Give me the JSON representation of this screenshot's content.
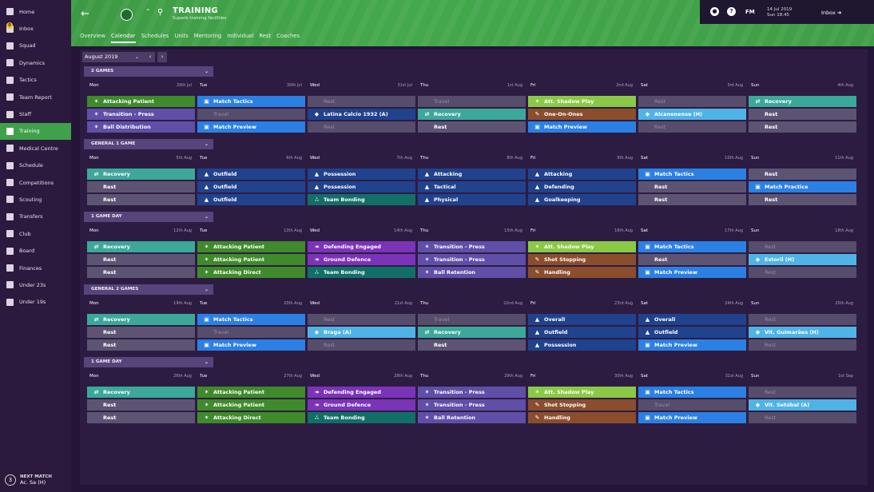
{
  "sidebar": {
    "items": [
      "Home",
      "Inbox",
      "Squad",
      "Dynamics",
      "Tactics",
      "Team Report",
      "Staff",
      "Training",
      "Medical Centre",
      "Schedule",
      "Competitions",
      "Scouting",
      "Transfers",
      "Club",
      "Board",
      "Finances",
      "Under 23s",
      "Under 19s"
    ],
    "inbox_badge": "0",
    "next_match": {
      "label": "NEXT MATCH",
      "count": "3",
      "opponent": "Ac. Sa (H)"
    }
  },
  "header": {
    "title": "TRAINING",
    "subtitle": "Superb training facilities",
    "tabs": [
      "Overview",
      "Calendar",
      "Schedules",
      "Units",
      "Mentoring",
      "Individual",
      "Rest",
      "Coaches"
    ],
    "active_tab": "Calendar",
    "fm": "FM",
    "date": "14 Jul 2019",
    "time": "Sun 18:45",
    "inbox_label": "Inbox",
    "help": "?"
  },
  "calendar": {
    "month": "August 2019",
    "weeks": [
      {
        "label": "2 GAMES",
        "days": [
          [
            "Mon",
            "29th Jul"
          ],
          [
            "Tue",
            "30th Jul"
          ],
          [
            "Wed",
            "31st Jul"
          ],
          [
            "Thu",
            "1st Aug"
          ],
          [
            "Fri",
            "2nd Aug"
          ],
          [
            "Sat",
            "3rd Aug"
          ],
          [
            "Sun",
            "4th Aug"
          ]
        ],
        "rows": [
          [
            [
              "c-green",
              "run",
              "Attacking Patient"
            ],
            [
              "c-blue",
              "doc",
              "Match Tactics"
            ],
            [
              "c-dgrey",
              "",
              "Rest"
            ],
            [
              "c-dgrey",
              "",
              "Travel"
            ],
            [
              "c-lgreen",
              "run",
              "Att. Shadow Play"
            ],
            [
              "c-dgrey",
              "",
              "Rest"
            ],
            [
              "c-teal",
              "arr",
              "Recovery"
            ]
          ],
          [
            [
              "c-purp",
              "run",
              "Transition - Press"
            ],
            [
              "c-dgrey",
              "",
              "Travel"
            ],
            [
              "c-nblue",
              "shield",
              "Latina Calcio 1932 (A)"
            ],
            [
              "c-teal",
              "arr",
              "Recovery"
            ],
            [
              "c-brown",
              "glove",
              "One-On-Ones"
            ],
            [
              "c-lblue",
              "shield",
              "Alcanenense (H)"
            ],
            [
              "c-grey",
              "",
              "Rest"
            ]
          ],
          [
            [
              "c-purp",
              "run",
              "Ball Distribution"
            ],
            [
              "c-blue",
              "doc",
              "Match Preview"
            ],
            [
              "c-dgrey",
              "",
              "Rest"
            ],
            [
              "c-grey",
              "",
              "Rest"
            ],
            [
              "c-blue",
              "doc",
              "Match Preview"
            ],
            [
              "c-dgrey",
              "",
              "Rest"
            ],
            [
              "c-grey",
              "",
              "Rest"
            ]
          ]
        ]
      },
      {
        "label": "GENERAL 1 GAME",
        "days": [
          [
            "Mon",
            "5th Aug"
          ],
          [
            "Tue",
            "6th Aug"
          ],
          [
            "Wed",
            "7th Aug"
          ],
          [
            "Thu",
            "8th Aug"
          ],
          [
            "Fri",
            "9th Aug"
          ],
          [
            "Sat",
            "10th Aug"
          ],
          [
            "Sun",
            "11th Aug"
          ]
        ],
        "rows": [
          [
            [
              "c-teal",
              "arr",
              "Recovery"
            ],
            [
              "c-nblue",
              "tri",
              "Outfield"
            ],
            [
              "c-nblue",
              "tri",
              "Possession"
            ],
            [
              "c-nblue",
              "tri",
              "Attacking"
            ],
            [
              "c-nblue",
              "tri",
              "Attacking"
            ],
            [
              "c-blue",
              "doc",
              "Match Tactics"
            ],
            [
              "c-grey",
              "",
              "Rest"
            ]
          ],
          [
            [
              "c-grey",
              "",
              "Rest"
            ],
            [
              "c-nblue",
              "tri",
              "Outfield"
            ],
            [
              "c-nblue",
              "tri",
              "Possession"
            ],
            [
              "c-nblue",
              "tri",
              "Tactical"
            ],
            [
              "c-nblue",
              "tri",
              "Defending"
            ],
            [
              "c-grey",
              "",
              "Rest"
            ],
            [
              "c-blue",
              "doc",
              "Match Practice"
            ]
          ],
          [
            [
              "c-grey",
              "",
              "Rest"
            ],
            [
              "c-nblue",
              "tri",
              "Outfield"
            ],
            [
              "c-dteal",
              "grp",
              "Team Bonding"
            ],
            [
              "c-nblue",
              "tri",
              "Physical"
            ],
            [
              "c-nblue",
              "tri",
              "Goalkeeping"
            ],
            [
              "c-grey",
              "",
              "Rest"
            ],
            [
              "c-grey",
              "",
              "Rest"
            ]
          ]
        ]
      },
      {
        "label": "1 GAME DAY",
        "days": [
          [
            "Mon",
            "12th Aug"
          ],
          [
            "Tue",
            "13th Aug"
          ],
          [
            "Wed",
            "14th Aug"
          ],
          [
            "Thu",
            "15th Aug"
          ],
          [
            "Fri",
            "16th Aug"
          ],
          [
            "Sat",
            "17th Aug"
          ],
          [
            "Sun",
            "18th Aug"
          ]
        ],
        "rows": [
          [
            [
              "c-teal",
              "arr",
              "Recovery"
            ],
            [
              "c-green",
              "run",
              "Attacking Patient"
            ],
            [
              "c-mag",
              "tackle",
              "Defending Engaged"
            ],
            [
              "c-purp",
              "run",
              "Transition - Press"
            ],
            [
              "c-lgreen",
              "run",
              "Att. Shadow Play"
            ],
            [
              "c-blue",
              "doc",
              "Match Tactics"
            ],
            [
              "c-dgrey",
              "",
              "Rest"
            ]
          ],
          [
            [
              "c-grey",
              "",
              "Rest"
            ],
            [
              "c-green",
              "run",
              "Attacking Patient"
            ],
            [
              "c-mag",
              "tackle",
              "Ground Defence"
            ],
            [
              "c-purp",
              "run",
              "Transition - Press"
            ],
            [
              "c-brown",
              "glove",
              "Shot Stopping"
            ],
            [
              "c-grey",
              "",
              "Rest"
            ],
            [
              "c-lblue",
              "shield",
              "Estoril (H)"
            ]
          ],
          [
            [
              "c-grey",
              "",
              "Rest"
            ],
            [
              "c-green",
              "run",
              "Attacking Direct"
            ],
            [
              "c-dteal",
              "grp",
              "Team Bonding"
            ],
            [
              "c-purp",
              "run",
              "Ball Retention"
            ],
            [
              "c-brown",
              "glove",
              "Handling"
            ],
            [
              "c-blue",
              "doc",
              "Match Preview"
            ],
            [
              "c-dgrey",
              "",
              "Rest"
            ]
          ]
        ]
      },
      {
        "label": "GENERAL 2 GAMES",
        "days": [
          [
            "Mon",
            "19th Aug"
          ],
          [
            "Tue",
            "20th Aug"
          ],
          [
            "Wed",
            "21st Aug"
          ],
          [
            "Thu",
            "22nd Aug"
          ],
          [
            "Fri",
            "23rd Aug"
          ],
          [
            "Sat",
            "24th Aug"
          ],
          [
            "Sun",
            "25th Aug"
          ]
        ],
        "rows": [
          [
            [
              "c-teal",
              "arr",
              "Recovery"
            ],
            [
              "c-blue",
              "doc",
              "Match Tactics"
            ],
            [
              "c-dgrey",
              "",
              "Rest"
            ],
            [
              "c-dgrey",
              "",
              "Travel"
            ],
            [
              "c-nblue",
              "tri",
              "Overall"
            ],
            [
              "c-nblue",
              "tri",
              "Overall"
            ],
            [
              "c-dgrey",
              "",
              "Rest"
            ]
          ],
          [
            [
              "c-grey",
              "",
              "Rest"
            ],
            [
              "c-dgrey",
              "",
              "Travel"
            ],
            [
              "c-lblue",
              "shield",
              "Braga (A)"
            ],
            [
              "c-teal",
              "arr",
              "Recovery"
            ],
            [
              "c-nblue",
              "tri",
              "Outfield"
            ],
            [
              "c-nblue",
              "tri",
              "Outfield"
            ],
            [
              "c-lblue",
              "shield",
              "Vit. Guimarães (H)"
            ]
          ],
          [
            [
              "c-grey",
              "",
              "Rest"
            ],
            [
              "c-blue",
              "doc",
              "Match Preview"
            ],
            [
              "c-dgrey",
              "",
              "Rest"
            ],
            [
              "c-grey",
              "",
              "Rest"
            ],
            [
              "c-nblue",
              "tri",
              "Possession"
            ],
            [
              "c-blue",
              "doc",
              "Match Preview"
            ],
            [
              "c-dgrey",
              "",
              "Rest"
            ]
          ]
        ]
      },
      {
        "label": "1 GAME DAY",
        "days": [
          [
            "Mon",
            "26th Aug"
          ],
          [
            "Tue",
            "27th Aug"
          ],
          [
            "Wed",
            "28th Aug"
          ],
          [
            "Thu",
            "29th Aug"
          ],
          [
            "Fri",
            "30th Aug"
          ],
          [
            "Sat",
            "31st Aug"
          ],
          [
            "Sun",
            "1st Sep"
          ]
        ],
        "rows": [
          [
            [
              "c-teal",
              "arr",
              "Recovery"
            ],
            [
              "c-green",
              "run",
              "Attacking Patient"
            ],
            [
              "c-mag",
              "tackle",
              "Defending Engaged"
            ],
            [
              "c-purp",
              "run",
              "Transition - Press"
            ],
            [
              "c-lgreen",
              "run",
              "Att. Shadow Play"
            ],
            [
              "c-blue",
              "doc",
              "Match Tactics"
            ],
            [
              "c-dgrey",
              "",
              "Rest"
            ]
          ],
          [
            [
              "c-grey",
              "",
              "Rest"
            ],
            [
              "c-green",
              "run",
              "Attacking Patient"
            ],
            [
              "c-mag",
              "tackle",
              "Ground Defence"
            ],
            [
              "c-purp",
              "run",
              "Transition - Press"
            ],
            [
              "c-brown",
              "glove",
              "Shot Stopping"
            ],
            [
              "c-dgrey",
              "",
              "Travel"
            ],
            [
              "c-lblue",
              "shield",
              "Vit. Setúbal (A)"
            ]
          ],
          [
            [
              "c-grey",
              "",
              "Rest"
            ],
            [
              "c-green",
              "run",
              "Attacking Direct"
            ],
            [
              "c-dteal",
              "grp",
              "Team Bonding"
            ],
            [
              "c-purp",
              "run",
              "Ball Retention"
            ],
            [
              "c-brown",
              "glove",
              "Handling"
            ],
            [
              "c-blue",
              "doc",
              "Match Preview"
            ],
            [
              "c-dgrey",
              "",
              "Rest"
            ]
          ]
        ]
      }
    ]
  }
}
